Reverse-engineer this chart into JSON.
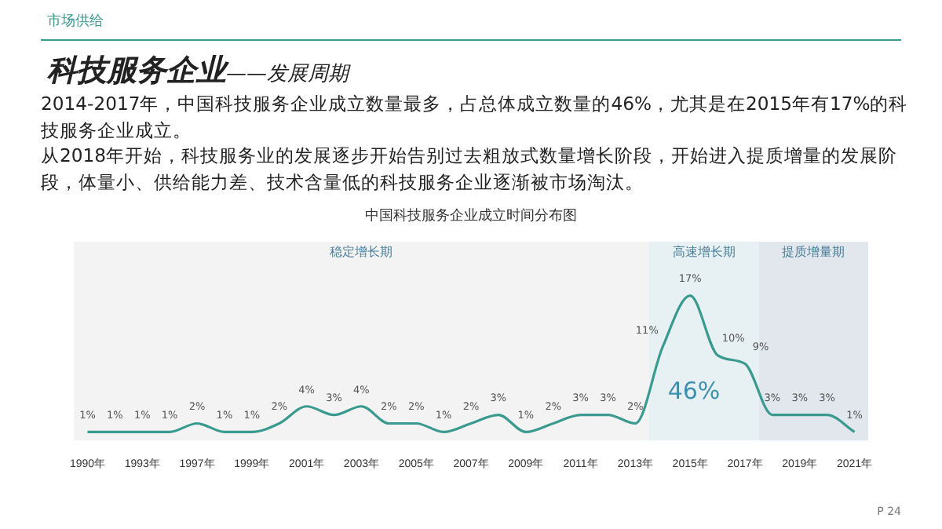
{
  "chart_data": {
    "type": "line",
    "title": "科技服务企业——发展周期",
    "subtitle": "中国科技服务企业成立时间分布图",
    "annotations": [
      "市场供给",
      "2014-2017年，中国科技服务企业成立数量最多，占总体成立数量的46%，尤其是在2015年有17%的科技服务企业成立。",
      "从2018年开始，科技服务业的发展逐步开始告别过去粗放式数量增长阶段，开始进入提质增量的发展阶段，体量小、供给能力差、技术含量低的科技服务企业逐渐被市场淘汰。",
      "46%",
      "P 24"
    ],
    "categories": [
      "1990年",
      null,
      "1993年",
      null,
      "1997年",
      null,
      "1999年",
      null,
      "2001年",
      null,
      "2003年",
      null,
      "2005年",
      null,
      "2007年",
      null,
      "2009年",
      null,
      "2011年",
      null,
      "2013年",
      null,
      "2015年",
      null,
      "2017年",
      null,
      "2019年",
      null,
      "2021年"
    ],
    "series": [
      {
        "color": "#3a9a8f",
        "values": [
          1,
          1,
          1,
          1,
          2,
          1,
          1,
          2,
          4,
          3,
          4,
          2,
          2,
          1,
          2,
          3,
          1,
          2,
          3,
          3,
          2,
          11,
          17,
          10,
          9,
          3,
          3,
          3,
          1
        ],
        "value_labels": [
          "1%",
          "1%",
          "1%",
          "1%",
          "2%",
          "1%",
          "1%",
          "2%",
          "4%",
          "3%",
          "4%",
          "2%",
          "2%",
          "1%",
          "2%",
          "3%",
          "1%",
          "2%",
          "3%",
          "3%",
          "2%",
          "11%",
          "17%",
          "10%",
          "9%",
          "3%",
          "3%",
          "3%",
          "1%"
        ]
      }
    ],
    "bands": [
      {
        "axis": "x",
        "from": "1990年",
        "to": "2013年",
        "label": "稳定增长期",
        "color": "#f3f3f3"
      },
      {
        "axis": "x",
        "from": "2013年",
        "to": "2017年",
        "label": "高速增长期",
        "color": "#e7f1f3"
      },
      {
        "axis": "x",
        "from": "2017年",
        "to": "2021年",
        "label": "提质增量期",
        "color": "#e1e7ed"
      }
    ],
    "grid": false,
    "legend": false,
    "marker": "none",
    "line_style": "solid",
    "tick_labels": "x"
  }
}
